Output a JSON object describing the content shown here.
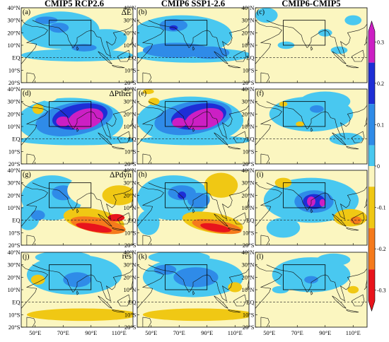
{
  "figure": {
    "column_titles": [
      "CMIP5 RCP2.6",
      "CMIP6 SSP1-2.6",
      "CMIP6-CMIP5"
    ],
    "row_labels": [
      "ΔE",
      "ΔPther",
      "ΔPdyn",
      "res"
    ],
    "panel_labels": [
      [
        "(a)",
        "(b)",
        "(c)"
      ],
      [
        "(d)",
        "(e)",
        "(f)"
      ],
      [
        "(g)",
        "(h)",
        "(i)"
      ],
      [
        "(j)",
        "(k)",
        "(l)"
      ]
    ],
    "lat_ticks": [
      "40°N",
      "30°N",
      "20°N",
      "10°N",
      "EQ",
      "10°S",
      "20°S"
    ],
    "lon_ticks": [
      "50°E",
      "70°E",
      "90°E",
      "110°E"
    ]
  },
  "colorbar": {
    "ticks": [
      "0.3",
      "0.2",
      "0.1",
      "0",
      "-0.1",
      "-0.2",
      "-0.3"
    ],
    "tick_values": [
      0.3,
      0.2,
      0.1,
      0,
      -0.1,
      -0.2,
      -0.3
    ],
    "min": -0.35,
    "max": 0.35,
    "colors": {
      "m035": "#e8141c",
      "m025": "#f57a1c",
      "m015": "#f0c814",
      "m005": "#fbf6c0",
      "p005": "#49c8f0",
      "p015": "#2f8be8",
      "p025": "#1e2ed6",
      "p035": "#cc1fc4"
    }
  }
}
